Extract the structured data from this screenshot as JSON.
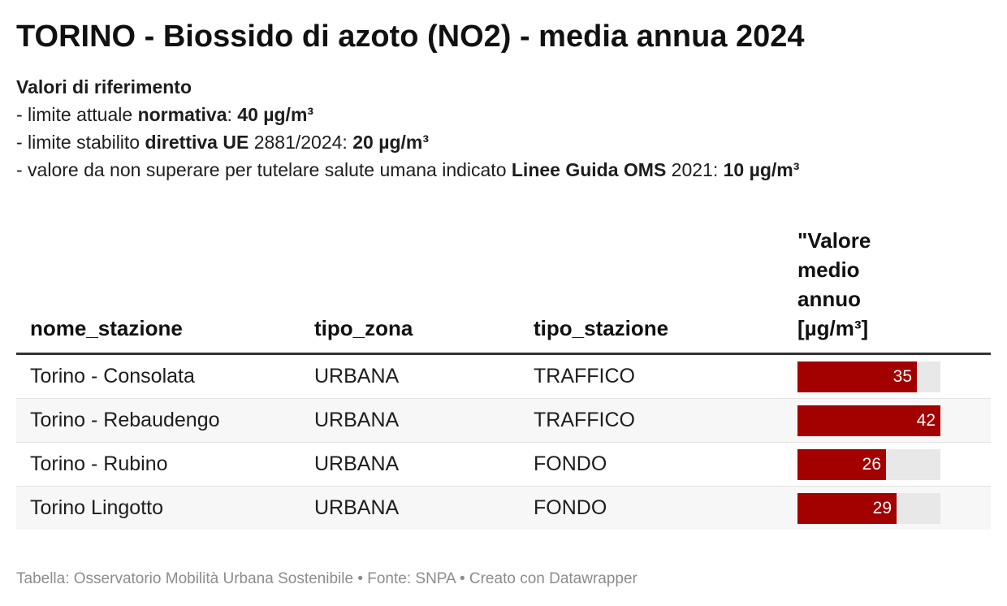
{
  "title": "TORINO - Biossido di azoto (NO2) - media annua 2024",
  "description": {
    "heading": "Valori di riferimento",
    "line1": {
      "pre": "- limite attuale ",
      "bold1": "normativa",
      "mid": ": ",
      "bold2": "40 µg/m³"
    },
    "line2": {
      "pre": "- limite stabilito ",
      "bold1": "direttiva UE",
      "mid": " 2881/2024: ",
      "bold2": "20 µg/m³"
    },
    "line3": {
      "pre": "- valore da non superare per tutelare salute umana indicato ",
      "bold1": "Linee Guida OMS",
      "mid": " 2021: ",
      "bold2": "10 µg/m³"
    }
  },
  "table": {
    "headers": {
      "nome": "nome_stazione",
      "zona": "tipo_zona",
      "stazione": "tipo_stazione",
      "valore": "\"Valore medio annuo [µg/m³]"
    }
  },
  "chart_data": {
    "type": "table",
    "columns": [
      "nome_stazione",
      "tipo_zona",
      "tipo_stazione",
      "\"Valore medio annuo [µg/m³]"
    ],
    "bar_max": 42,
    "bar_color": "#a30000",
    "rows": [
      {
        "nome_stazione": "Torino - Consolata",
        "tipo_zona": "URBANA",
        "tipo_stazione": "TRAFFICO",
        "valore": 35
      },
      {
        "nome_stazione": "Torino - Rebaudengo",
        "tipo_zona": "URBANA",
        "tipo_stazione": "TRAFFICO",
        "valore": 42
      },
      {
        "nome_stazione": "Torino - Rubino",
        "tipo_zona": "URBANA",
        "tipo_stazione": "FONDO",
        "valore": 26
      },
      {
        "nome_stazione": "Torino Lingotto",
        "tipo_zona": "URBANA",
        "tipo_stazione": "FONDO",
        "valore": 29
      }
    ]
  },
  "footer": "Tabella: Osservatorio Mobilità Urbana Sostenibile • Fonte: SNPA • Creato con Datawrapper"
}
